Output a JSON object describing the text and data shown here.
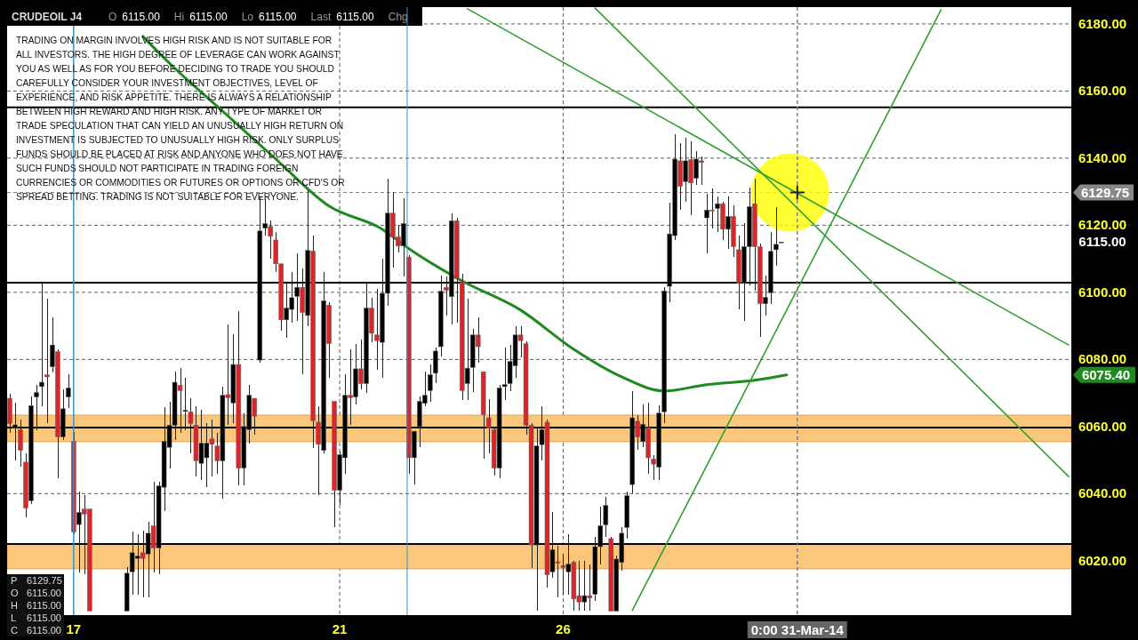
{
  "chart_data": {
    "type": "candlestick",
    "title": "CRUDEOIL J4",
    "subtitle": "O 6115.00 Hi 6115.00 Lo 6115.00 Last 6115.00 Chg",
    "categories": [
      null,
      null,
      null,
      null,
      null,
      null,
      null,
      null,
      null,
      null,
      null,
      null,
      "17",
      null,
      null,
      null,
      null,
      null,
      null,
      null,
      null,
      null,
      null,
      null,
      null,
      null,
      null,
      null,
      null,
      null,
      null,
      null,
      null,
      null,
      null,
      null,
      null,
      null,
      null,
      null,
      null,
      null,
      null,
      null,
      null,
      null,
      null,
      null,
      null,
      null,
      null,
      null,
      null,
      null,
      null,
      null,
      null,
      null,
      null,
      null,
      null,
      null,
      "21",
      null,
      null,
      null,
      null,
      null,
      null,
      null,
      null,
      null,
      null,
      null,
      null,
      null,
      null,
      null,
      null,
      null,
      null,
      null,
      null,
      null,
      null,
      null,
      null,
      null,
      null,
      null,
      null,
      null,
      null,
      null,
      null,
      null,
      null,
      null,
      null,
      null,
      null,
      null,
      null,
      null,
      "26",
      null,
      null,
      null,
      null,
      null,
      null,
      null,
      null,
      null,
      null,
      null,
      null,
      null,
      null,
      null,
      null,
      null,
      null,
      null,
      null,
      null,
      null,
      null,
      null,
      null,
      null,
      null,
      null,
      null,
      null,
      null,
      null,
      null,
      null,
      null,
      null,
      null,
      null,
      null,
      null,
      null,
      null,
      null,
      "0:00 31-Mar-14",
      null,
      null,
      null,
      null,
      null,
      null,
      null,
      null,
      null,
      null,
      null,
      null,
      null,
      null,
      null,
      null,
      null,
      null,
      null,
      null,
      null,
      null,
      null,
      null,
      null,
      null,
      null,
      null,
      null,
      null,
      null,
      null,
      null,
      null,
      null,
      null,
      null,
      null,
      null,
      null,
      null,
      null,
      null,
      null,
      null,
      null,
      null,
      null,
      null,
      null,
      null
    ],
    "ohlc": [
      [
        6068.4,
        6069.7,
        6058,
        6060.9
      ],
      [
        6059.5,
        6067,
        6050,
        6060.5
      ],
      [
        6059.1,
        6062,
        6048,
        6052.9
      ],
      [
        6049.4,
        6052,
        6033,
        6035.7
      ],
      [
        6037.9,
        6069,
        6037,
        6066.2
      ],
      [
        6068.8,
        6072.5,
        6059,
        6070.1
      ],
      [
        6071.9,
        6103,
        6066,
        6073.2
      ],
      [
        6075.4,
        6098,
        6061,
        6074.8
      ],
      [
        6077.8,
        6092.6,
        6076,
        6084.3
      ],
      [
        6082.3,
        6083,
        6044.6,
        6056.9
      ],
      [
        6056.9,
        6071,
        6056,
        6065.3
      ],
      [
        6068.8,
        6075.5,
        6065.6,
        6071.5
      ],
      [
        6055.6,
        6058.4,
        6028,
        6028.6
      ],
      [
        6030.8,
        6040.6,
        6016.6,
        6034.4
      ],
      [
        6035.4,
        6039.5,
        6016,
        6033.9
      ],
      [
        6035.4,
        6035.4,
        6005,
        6005
      ],
      null,
      null,
      null,
      null,
      null,
      null,
      [
        6005,
        6018,
        6005,
        6016.3
      ],
      [
        6016.7,
        6028.6,
        6010,
        6022.4
      ],
      [
        6020.7,
        6028,
        6010,
        6021.4
      ],
      [
        6022.4,
        6029,
        6009,
        6020.7
      ],
      [
        6022,
        6031.6,
        6009,
        6028.2
      ],
      [
        6030.4,
        6043.5,
        6016.6,
        6023.8
      ],
      [
        6023.8,
        6043.6,
        6016,
        6042.3
      ],
      [
        6041.9,
        6065.8,
        6034.7,
        6055.6
      ],
      [
        6053.8,
        6067.4,
        6047.6,
        6060.4
      ],
      [
        6060.4,
        6076.4,
        6056,
        6073.2
      ],
      [
        6072.3,
        6077.5,
        6058,
        6070.7
      ],
      [
        6064.5,
        6074.6,
        6059,
        6064.9
      ],
      [
        6064.4,
        6068.5,
        6052,
        6060.9
      ],
      [
        6060.4,
        6066,
        6045,
        6049.8
      ],
      [
        6049,
        6065,
        6044,
        6055.1
      ],
      [
        6050.7,
        6061,
        6042,
        6055.1
      ],
      [
        6056.3,
        6062,
        6045,
        6054.7
      ],
      [
        6054.2,
        6058,
        6046,
        6049.8
      ],
      [
        6049.8,
        6072,
        6038.6,
        6069.3
      ],
      [
        6069.5,
        6090.5,
        6060.6,
        6068.6
      ],
      [
        6067,
        6087.5,
        6061,
        6078.5
      ],
      [
        6078.5,
        6094.4,
        6042.6,
        6047.6
      ],
      [
        6047.6,
        6064,
        6042.6,
        6060
      ],
      [
        6059.1,
        6072.5,
        6055,
        6069.3
      ],
      [
        6068.4,
        6068.4,
        6057.7,
        6063.1
      ],
      [
        6079.8,
        6128.4,
        6079,
        6118.3
      ],
      [
        6119.1,
        6127.8,
        6117,
        6120.5
      ],
      [
        6119.6,
        6121.3,
        6110,
        6116.7
      ],
      [
        6115.6,
        6118,
        6106,
        6108.5
      ],
      [
        6108.5,
        6108.5,
        6088.6,
        6091.8
      ],
      [
        6091.8,
        6103,
        6086.5,
        6095.3
      ],
      [
        6094.9,
        6106,
        6091,
        6098.4
      ],
      [
        6098.8,
        6111.5,
        6091.5,
        6101.5
      ],
      [
        6101.5,
        6107,
        6075.7,
        6094
      ],
      [
        6093.1,
        6130.3,
        6089.9,
        6112.5
      ],
      [
        6112.3,
        6117,
        6053.6,
        6061.7
      ],
      [
        6061.3,
        6066,
        6039.6,
        6054.7
      ],
      [
        6052.9,
        6106,
        6052,
        6097.5
      ],
      [
        6096.2,
        6097,
        6074.6,
        6084.7
      ],
      [
        6067.5,
        6067.5,
        6030,
        6041
      ],
      [
        6041,
        6052.5,
        6036.6,
        6051.6
      ],
      [
        6050.7,
        6075.6,
        6046,
        6069.3
      ],
      [
        6069.3,
        6083,
        6060.6,
        6068.6
      ],
      [
        6068.8,
        6084.7,
        6066.5,
        6077.2
      ],
      [
        6077.2,
        6086,
        6071,
        6072.8
      ],
      [
        6072.8,
        6103,
        6070,
        6095.3
      ],
      [
        6095.3,
        6098.5,
        6085,
        6087.8
      ],
      [
        6087.3,
        6101,
        6077,
        6085.6
      ],
      [
        6085.1,
        6110,
        6074.6,
        6099.7
      ],
      [
        6099.7,
        6134,
        6096,
        6123.6
      ],
      [
        6123.6,
        6130,
        6107.4,
        6116.5
      ],
      [
        6116.5,
        6120,
        6112,
        6113.8
      ],
      [
        6113.8,
        6128,
        6104.7,
        6120.5
      ],
      [
        6110.5,
        6111,
        6045.8,
        6050.7
      ],
      [
        6050.7,
        6058.6,
        6042.7,
        6058.6
      ],
      [
        6060,
        6069,
        6053.8,
        6067.5
      ],
      [
        6066.9,
        6076.4,
        6066,
        6069.3
      ],
      [
        6070.7,
        6078.6,
        6067.5,
        6075.4
      ],
      [
        6075.9,
        6083.6,
        6073,
        6082.5
      ],
      [
        6083.8,
        6105,
        6081,
        6100.3
      ],
      [
        6101.5,
        6104.7,
        6093,
        6100.6
      ],
      [
        6098.7,
        6123.5,
        6090.5,
        6121.3
      ],
      [
        6121.3,
        6122.3,
        6091,
        6104.1
      ],
      [
        6103.2,
        6105.5,
        6067.8,
        6070.7
      ],
      [
        6072.8,
        6098,
        6067.9,
        6077.4
      ],
      [
        6077.6,
        6089,
        6070.3,
        6087.3
      ],
      [
        6087.3,
        6092.5,
        6079,
        6083.8
      ],
      [
        6076.3,
        6076.3,
        6050.5,
        6063.5
      ],
      [
        6062.6,
        6068.3,
        6052,
        6059.5
      ],
      [
        6059.1,
        6060,
        6045.5,
        6047.6
      ],
      [
        6047.6,
        6072.5,
        6044.6,
        6071.5
      ],
      [
        6071.9,
        6083.5,
        6068,
        6072.5
      ],
      [
        6072.8,
        6084.4,
        6070.5,
        6079.4
      ],
      [
        6078.1,
        6090,
        6074.6,
        6087.3
      ],
      [
        6087.3,
        6090,
        6080.6,
        6085.6
      ],
      [
        6084.7,
        6085.5,
        6057.6,
        6060.4
      ],
      [
        6060.4,
        6061,
        6017.8,
        6024.7
      ],
      [
        6024.7,
        6060,
        6005,
        6054.2
      ],
      [
        6054.6,
        6066,
        6050,
        6059.1
      ],
      [
        6061.3,
        6062,
        6012,
        6015.8
      ],
      [
        6016.7,
        6034.5,
        6015,
        6023.3
      ],
      [
        6019.7,
        6024.5,
        6009,
        6019.3
      ],
      [
        6018.6,
        6022,
        6010,
        6018
      ],
      [
        6016.7,
        6028,
        6010,
        6019
      ],
      [
        6019.5,
        6020,
        6005,
        6008.6
      ],
      [
        6009.6,
        6020,
        6005,
        6007.7
      ],
      [
        6007.7,
        6020,
        6005,
        6009.6
      ],
      [
        6009.6,
        6019,
        6005,
        6008.9
      ],
      [
        6010,
        6027,
        6008,
        6024.2
      ],
      [
        6024.2,
        6036,
        6019,
        6030.4
      ],
      [
        6030.7,
        6039,
        6027,
        6036.5
      ],
      [
        6026.6,
        6027,
        6005,
        6005
      ],
      [
        6005,
        6021.5,
        6005,
        6020.5
      ],
      [
        6019.5,
        6030,
        6017,
        6028.2
      ],
      [
        6029.9,
        6040.5,
        6026.5,
        6039.4
      ],
      [
        6042.7,
        6070.6,
        6040,
        6062.6
      ],
      [
        6061.6,
        6063.5,
        6053,
        6056.9
      ],
      [
        6055.5,
        6066.5,
        6054,
        6060.7
      ],
      [
        6059.7,
        6067,
        6046,
        6050.7
      ],
      [
        6050.3,
        6051.5,
        6044,
        6048.8
      ],
      [
        6047.9,
        6066.4,
        6044,
        6064
      ],
      [
        6064.4,
        6101.5,
        6061,
        6100.4
      ],
      [
        6101.8,
        6126.7,
        6097,
        6117.4
      ],
      [
        6116.9,
        6147.2,
        6115.5,
        6139.7
      ],
      [
        6139.2,
        6144.5,
        6124.5,
        6131.6
      ],
      [
        6133,
        6146,
        6127,
        6139.2
      ],
      [
        6139.5,
        6145,
        6123,
        6132.6
      ],
      [
        6134,
        6142,
        6132,
        6139.7
      ],
      [
        6139.2,
        6140.5,
        6132,
        6138.7
      ],
      [
        6122.2,
        6129.5,
        6111.5,
        6124.5
      ],
      [
        6124.5,
        6131,
        6119,
        6124.2
      ],
      [
        6125,
        6128.5,
        6118,
        6126.4
      ],
      [
        6126.4,
        6127,
        6115.5,
        6118.8
      ],
      [
        6118.8,
        6128.5,
        6113,
        6122.6
      ],
      [
        6122.6,
        6126,
        6110.5,
        6113.6
      ],
      [
        6112.7,
        6117,
        6095,
        6102.8
      ],
      [
        6102.8,
        6120.6,
        6091.6,
        6113.6
      ],
      [
        6113.6,
        6131.3,
        6102,
        6125.5
      ],
      [
        6126.4,
        6134,
        6100.6,
        6113.6
      ],
      [
        6113.6,
        6114.5,
        6086.7,
        6096.6
      ],
      [
        6096.6,
        6105,
        6093,
        6098.5
      ],
      [
        6099.9,
        6118,
        6096.6,
        6112.2
      ],
      [
        6112.7,
        6125.5,
        6108,
        6114.3
      ],
      [
        6115,
        6115,
        6115,
        6115
      ],
      null,
      null,
      null,
      null,
      null,
      null,
      null,
      null,
      null,
      null,
      null,
      null,
      null,
      null,
      null,
      null,
      null,
      null,
      null,
      null,
      null,
      null,
      null,
      null,
      null,
      null,
      null,
      null,
      null,
      null,
      null,
      null,
      null,
      null,
      null,
      null,
      null,
      null,
      null,
      null,
      null,
      null,
      null,
      null,
      null,
      null,
      null,
      null,
      null,
      null,
      null,
      null,
      null,
      null
    ],
    "value_labels": [
      null,
      null,
      null,
      null,
      null,
      null,
      null,
      null,
      null,
      null,
      null,
      null,
      null,
      null,
      null,
      null,
      null,
      null,
      null,
      null,
      null,
      null,
      null,
      null,
      null,
      null,
      null,
      null,
      null,
      null,
      null,
      null,
      null,
      null,
      null,
      null,
      null,
      null,
      null,
      null,
      null,
      null,
      null,
      null,
      null,
      null,
      null,
      null,
      null,
      null,
      null,
      null,
      null,
      null,
      null,
      null,
      null,
      null,
      null,
      null,
      null,
      null,
      null,
      null,
      null,
      null,
      null,
      null,
      null,
      null,
      null,
      null,
      null,
      null,
      null,
      null,
      null,
      null,
      null,
      null,
      null,
      null,
      null,
      null,
      null,
      null,
      null,
      null,
      null,
      null,
      null,
      null,
      null,
      null,
      null,
      null,
      null,
      null,
      null,
      null,
      null,
      null,
      null,
      null,
      null,
      null,
      null,
      null,
      null,
      null,
      null,
      null,
      null,
      null,
      null,
      null,
      null,
      null,
      null,
      null,
      null,
      null,
      null,
      null,
      null,
      null,
      null,
      null,
      null,
      null,
      null,
      null,
      null,
      null,
      null,
      null,
      null,
      null,
      null,
      null,
      null,
      null,
      null,
      null,
      null,
      "6115.00",
      null,
      null,
      null,
      null,
      null,
      null,
      null,
      null,
      null,
      null,
      null,
      null,
      null,
      null,
      null,
      null,
      null,
      null,
      null,
      null,
      null,
      null,
      null,
      null,
      null,
      null,
      null,
      null,
      null,
      null,
      null,
      null,
      null,
      null,
      null,
      null,
      null,
      null,
      null,
      null,
      null,
      null,
      null,
      null,
      null,
      null,
      null,
      null,
      null,
      null,
      null,
      null,
      null,
      null
    ],
    "colors": [
      "#d8262b",
      "#000000",
      "#d8262b",
      "#d8262b",
      "#000000",
      "#000000",
      "#000000",
      "#d8262b",
      "#000000",
      "#d8262b",
      "#000000",
      "#000000",
      "#d8262b",
      "#000000",
      "#d8262b",
      "#d8262b",
      null,
      null,
      null,
      null,
      null,
      null,
      "#000000",
      "#000000",
      "#000000",
      "#d8262b",
      "#000000",
      "#d8262b",
      "#000000",
      "#000000",
      "#000000",
      "#000000",
      "#d8262b",
      "#000000",
      "#d8262b",
      "#d8262b",
      "#000000",
      "#000000",
      "#d8262b",
      "#d8262b",
      "#000000",
      "#d8262b",
      "#000000",
      "#d8262b",
      "#000000",
      "#000000",
      "#d8262b",
      "#000000",
      "#000000",
      "#d8262b",
      "#d8262b",
      "#d8262b",
      "#000000",
      "#000000",
      "#000000",
      "#d8262b",
      "#000000",
      "#d8262b",
      "#d8262b",
      "#000000",
      "#d8262b",
      "#d8262b",
      "#000000",
      "#000000",
      "#d8262b",
      "#000000",
      "#d8262b",
      "#000000",
      "#d8262b",
      "#d8262b",
      "#000000",
      "#000000",
      "#d8262b",
      "#d8262b",
      "#000000",
      "#d8262b",
      "#000000",
      "#000000",
      "#000000",
      "#000000",
      "#000000",
      "#000000",
      "#d8262b",
      "#000000",
      "#d8262b",
      "#d8262b",
      "#000000",
      "#000000",
      "#d8262b",
      "#d8262b",
      "#d8262b",
      "#d8262b",
      "#000000",
      "#000000",
      "#000000",
      "#000000",
      "#d8262b",
      "#d8262b",
      "#d8262b",
      "#000000",
      "#000000",
      "#d8262b",
      "#000000",
      "#d8262b",
      "#d8262b",
      "#000000",
      "#d8262b",
      "#d8262b",
      "#000000",
      "#d8262b",
      "#000000",
      "#000000",
      "#000000",
      "#d8262b",
      "#000000",
      "#000000",
      "#000000",
      "#000000",
      "#d8262b",
      "#000000",
      "#d8262b",
      "#d8262b",
      "#000000",
      "#000000",
      "#000000",
      "#000000",
      "#d8262b",
      "#000000",
      "#d8262b",
      "#000000",
      "#d8262b",
      "#000000",
      "#d8262b",
      "#000000",
      "#d8262b",
      "#000000",
      "#d8262b",
      "#d8262b",
      "#000000",
      "#000000",
      "#d8262b",
      "#d8262b",
      "#000000",
      "#000000",
      "#000000",
      "#000000",
      null,
      null,
      null,
      null,
      null,
      null,
      null,
      null,
      null,
      null,
      null,
      null,
      null,
      null,
      null,
      null,
      null,
      null,
      null,
      null,
      null,
      null,
      null,
      null,
      null,
      null,
      null,
      null,
      null,
      null,
      null,
      null,
      null,
      null,
      null,
      null,
      null,
      null,
      null,
      null,
      null,
      null,
      null,
      null,
      null,
      null,
      null,
      null,
      null,
      null,
      null,
      null,
      null,
      null
    ],
    "series": [
      {
        "type": "line",
        "color": "#1f8a1f",
        "values": [
          null,
          null,
          null,
          null,
          null,
          null,
          null,
          null,
          null,
          null,
          null,
          null,
          null,
          null,
          null,
          null,
          null,
          null,
          null,
          null,
          null,
          null,
          null,
          null,
          null,
          6176.3,
          null,
          null,
          null,
          null,
          6168.3,
          null,
          null,
          null,
          null,
          null,
          null,
          null,
          null,
          null,
          6154.0,
          null,
          null,
          null,
          null,
          null,
          null,
          null,
          null,
          null,
          6139.7,
          null,
          null,
          null,
          null,
          null,
          null,
          null,
          null,
          null,
          6125.7,
          null,
          null,
          null,
          null,
          null,
          null,
          null,
          null,
          null,
          6118.8,
          null,
          null,
          null,
          null,
          6113.0,
          null,
          null,
          null,
          null,
          null,
          null,
          null,
          null,
          null,
          6103.4,
          null,
          null,
          null,
          null,
          null,
          null,
          null,
          null,
          null,
          null,
          6094.7,
          null,
          null,
          null,
          null,
          null,
          null,
          null,
          null,
          null,
          6083.0,
          null,
          null,
          null,
          null,
          null,
          null,
          null,
          null,
          6074.8,
          null,
          null,
          null,
          null,
          null,
          null,
          null,
          6070.6,
          null,
          null,
          null,
          null,
          null,
          null,
          null,
          6072.5,
          null,
          null,
          null,
          null,
          null,
          null,
          null,
          null,
          6073.8,
          null,
          null,
          null,
          null,
          null,
          6075.4,
          null,
          null,
          null,
          null,
          null,
          null,
          null,
          null,
          null,
          null,
          null,
          null,
          null,
          null,
          null,
          null,
          null,
          null,
          null,
          null,
          null,
          null,
          null,
          null,
          null,
          null,
          null,
          null,
          null,
          null,
          null,
          null,
          null,
          null,
          null,
          null,
          null,
          null,
          null,
          null,
          null,
          null,
          null,
          null,
          null,
          null,
          null,
          null,
          null,
          null,
          null,
          null,
          null
        ],
        "value_labels": [
          null,
          null,
          null,
          null,
          null,
          null,
          null,
          null,
          null,
          null,
          null,
          null,
          null,
          null,
          null,
          null,
          null,
          null,
          null,
          null,
          null,
          null,
          null,
          null,
          null,
          null,
          null,
          null,
          null,
          null,
          null,
          null,
          null,
          null,
          null,
          null,
          null,
          null,
          null,
          null,
          null,
          null,
          null,
          null,
          null,
          null,
          null,
          null,
          null,
          null,
          null,
          null,
          null,
          null,
          null,
          null,
          null,
          null,
          null,
          null,
          null,
          null,
          null,
          null,
          null,
          null,
          null,
          null,
          null,
          null,
          null,
          null,
          null,
          null,
          null,
          null,
          null,
          null,
          null,
          null,
          null,
          null,
          null,
          null,
          null,
          null,
          null,
          null,
          null,
          null,
          null,
          null,
          null,
          null,
          null,
          null,
          null,
          null,
          null,
          null,
          null,
          null,
          null,
          null,
          null,
          null,
          null,
          null,
          null,
          null,
          null,
          null,
          null,
          null,
          null,
          null,
          null,
          null,
          null,
          null,
          null,
          null,
          null,
          null,
          null,
          null,
          null,
          null,
          null,
          null,
          null,
          null,
          null,
          null,
          null,
          null,
          null,
          null,
          null,
          null,
          null,
          null,
          null,
          null,
          null,
          null,
          null,
          null,
          null,
          null,
          null,
          null,
          null,
          null,
          null,
          null,
          null,
          null,
          null,
          null,
          null,
          null,
          null,
          null,
          null,
          null,
          null,
          null,
          null,
          null,
          null,
          null,
          null,
          null,
          null,
          null,
          null,
          null,
          null,
          null,
          null,
          null,
          null,
          null,
          null,
          null,
          null,
          null,
          null,
          null,
          null,
          null,
          null,
          null,
          null,
          null,
          null,
          null,
          null,
          null
        ]
      },
      {
        "type": "line",
        "color": "#2ea02e",
        "values": [
          null,
          null,
          null,
          null,
          null,
          null,
          null,
          null,
          null,
          null,
          null,
          null,
          null,
          null,
          null,
          null,
          null,
          null,
          null,
          null,
          null,
          null,
          null,
          null,
          null,
          null,
          null,
          null,
          null,
          null,
          null,
          null,
          null,
          null,
          null,
          null,
          null,
          null,
          null,
          null,
          null,
          null,
          null,
          null,
          null,
          null,
          null,
          null,
          null,
          null,
          null,
          null,
          null,
          null,
          null,
          null,
          null,
          null,
          null,
          null,
          null,
          null,
          null,
          null,
          null,
          null,
          null,
          null,
          null,
          null,
          null,
          null,
          null,
          null,
          null,
          null,
          null,
          null,
          null,
          null,
          null,
          null,
          null,
          null,
          null,
          null,
          6184.5,
          null,
          null,
          null,
          null,
          null,
          null,
          null,
          null,
          null,
          null,
          null,
          null,
          null,
          null,
          null,
          null,
          null,
          null,
          null,
          null,
          null,
          null,
          null,
          null,
          null,
          null,
          null,
          null,
          null,
          null,
          null,
          null,
          null,
          null,
          null,
          null,
          null,
          null,
          null,
          null,
          null,
          null,
          null,
          null,
          null,
          null,
          null,
          null,
          null,
          null,
          null,
          null,
          null,
          null,
          null,
          null,
          null,
          null,
          null,
          null,
          null,
          null,
          null,
          null,
          null,
          null,
          null,
          null,
          null,
          null,
          null,
          null,
          null,
          null,
          null,
          null,
          null,
          null,
          null,
          null,
          null,
          null,
          null,
          null,
          null,
          null,
          null,
          null,
          null,
          null,
          null,
          null,
          null,
          null,
          null,
          null,
          null,
          null,
          null,
          null,
          null,
          null,
          null,
          null,
          null,
          null,
          null,
          null,
          null,
          null,
          null,
          null,
          6084.3
        ]
      },
      {
        "type": "line",
        "color": "#2ea02e",
        "values": [
          null,
          null,
          null,
          null,
          null,
          null,
          null,
          null,
          null,
          null,
          null,
          null,
          null,
          null,
          null,
          null,
          null,
          null,
          null,
          null,
          null,
          null,
          null,
          null,
          null,
          null,
          null,
          null,
          null,
          null,
          null,
          null,
          null,
          null,
          null,
          null,
          null,
          null,
          null,
          null,
          null,
          null,
          null,
          null,
          null,
          null,
          null,
          null,
          null,
          null,
          null,
          null,
          null,
          null,
          null,
          null,
          null,
          null,
          null,
          null,
          null,
          null,
          null,
          null,
          null,
          null,
          null,
          null,
          null,
          null,
          null,
          null,
          null,
          null,
          null,
          null,
          null,
          null,
          null,
          null,
          null,
          null,
          null,
          null,
          null,
          null,
          null,
          null,
          null,
          null,
          null,
          null,
          null,
          null,
          null,
          null,
          null,
          null,
          null,
          null,
          null,
          null,
          null,
          null,
          null,
          null,
          null,
          null,
          null,
          null,
          6184.7,
          null,
          null,
          null,
          null,
          null,
          null,
          null,
          null,
          null,
          null,
          null,
          null,
          null,
          null,
          null,
          null,
          null,
          null,
          null,
          null,
          null,
          null,
          null,
          null,
          null,
          null,
          null,
          null,
          null,
          null,
          null,
          null,
          null,
          null,
          null,
          null,
          null,
          null,
          null,
          null,
          null,
          null,
          null,
          null,
          null,
          null,
          null,
          null,
          null,
          null,
          null,
          null,
          null,
          null,
          null,
          null,
          null,
          null,
          null,
          null,
          null,
          null,
          null,
          null,
          null,
          null,
          null,
          null,
          null,
          null,
          null,
          null,
          null,
          null,
          null,
          null,
          null,
          null,
          null,
          null,
          null,
          null,
          null,
          null,
          null,
          null,
          null,
          null,
          6045.1
        ]
      },
      {
        "type": "line",
        "color": "#2ea02e",
        "values": [
          null,
          null,
          null,
          null,
          null,
          null,
          null,
          null,
          null,
          null,
          null,
          null,
          null,
          null,
          null,
          null,
          null,
          null,
          null,
          null,
          null,
          null,
          null,
          null,
          null,
          null,
          null,
          null,
          null,
          null,
          null,
          null,
          null,
          null,
          null,
          null,
          null,
          null,
          null,
          null,
          null,
          null,
          null,
          null,
          null,
          null,
          null,
          null,
          null,
          null,
          null,
          null,
          null,
          null,
          null,
          null,
          null,
          null,
          null,
          null,
          null,
          null,
          null,
          null,
          null,
          null,
          null,
          null,
          null,
          null,
          null,
          null,
          null,
          null,
          null,
          null,
          null,
          null,
          null,
          null,
          null,
          null,
          null,
          null,
          null,
          null,
          null,
          null,
          null,
          null,
          null,
          null,
          null,
          null,
          null,
          null,
          null,
          null,
          null,
          null,
          null,
          null,
          null,
          null,
          null,
          null,
          null,
          null,
          null,
          null,
          null,
          null,
          null,
          null,
          null,
          null,
          null,
          6005.2,
          null,
          null,
          null,
          null,
          null,
          null,
          null,
          null,
          null,
          null,
          null,
          null,
          null,
          null,
          null,
          null,
          null,
          null,
          null,
          null,
          null,
          null,
          null,
          null,
          null,
          null,
          null,
          null,
          null,
          null,
          null,
          null,
          null,
          null,
          null,
          null,
          null,
          null,
          null,
          null,
          null,
          null,
          null,
          null,
          null,
          null,
          null,
          null,
          null,
          null,
          null,
          null,
          null,
          null,
          null,
          null,
          null,
          6184.2,
          null,
          null,
          null,
          null,
          null,
          null,
          null,
          null,
          null,
          null,
          null,
          null,
          null,
          null,
          null,
          null,
          null,
          null,
          null,
          null,
          null,
          null,
          null,
          null
        ]
      }
    ],
    "ylim": [
      6003.8,
      6185
    ],
    "yticks": [
      {
        "value": 6020,
        "label": "6020.00"
      },
      {
        "value": 6040,
        "label": "6040.00"
      },
      {
        "value": 6060,
        "label": "6060.00"
      },
      {
        "value": 6080,
        "label": "6080.00"
      },
      {
        "value": 6100,
        "label": "6100.00"
      },
      {
        "value": 6120,
        "label": "6120.00"
      },
      {
        "value": 6140,
        "label": "6140.00"
      },
      {
        "value": 6160,
        "label": "6160.00"
      },
      {
        "value": 6180,
        "label": "6180.00"
      }
    ],
    "grid": true,
    "bands": [
      {
        "axis": "y",
        "from": 6055.5,
        "to": 6063.4,
        "color": "#fbc77a"
      },
      {
        "axis": "y",
        "from": 6017.6,
        "to": 6025.0,
        "color": "#fbc77a"
      }
    ],
    "ref_lines": [
      {
        "axis": "y",
        "value": 6155.1,
        "color": "#000000",
        "line_style": "solid"
      },
      {
        "axis": "y",
        "value": 6102.9,
        "color": "#000000",
        "line_style": "solid"
      },
      {
        "axis": "y",
        "value": 6059.7,
        "color": "#000000",
        "line_style": "solid"
      },
      {
        "axis": "y",
        "value": 6025.0,
        "color": "#000000",
        "line_style": "solid"
      },
      {
        "axis": "x",
        "value": "17",
        "color": "#3a8fc8",
        "line_style": "solid"
      },
      {
        "axis": "y",
        "value": 6129.75,
        "label": "6129.75",
        "color": "#808080",
        "line_style": "dashed"
      },
      {
        "axis": "x",
        "value": "0:00 31-Mar-14",
        "color": "#808080",
        "line_style": "dashed"
      }
    ],
    "annotations": [
      "TRADING ON MARGIN INVOLVES HIGH RISK AND IS NOT SUITABLE FOR\nALL INVESTORS. THE HIGH DEGREE OF LEVERAGE CAN WORK AGAINST\nYOU AS WELL AS FOR YOU BEFORE DECIDING TO TRADE YOU SHOULD\nCAREFULLY CONSIDER YOUR INVESTMENT OBJECTIVES, LEVEL OF\nEXPERIENCE, AND RISK APPETITE. THERE IS ALWAYS A RELATIONSHIP\nBETWEEN HIGH REWARD AND HIGH RISK. ANY TYPE OF MARKET OR\nTRADE SPECULATION THAT CAN YIELD AN UNUSUALLY HIGH RETURN ON\nINVESTMENT IS SUBJECTED TO UNUSUALLY HIGH RISK. ONLY SURPLUS\nFUNDS SHOULD BE PLACED AT RISK AND ANYONE WHO DOES NOT HAVE\nSUCH FUNDS SHOULD NOT PARTICIPATE IN TRADING FOREIGN\nCURRENCIES OR COMMODITIES OR FUTURES OR OPTIONS OR CFD'S OR\nSPREAD BETTING. TRADING IS NOT SUITABLE FOR EVERYONE.",
      "P 6129.75\nO 6115.00\nH 6115.00\nL 6115.00\nC 6115.00",
      "6075.40"
    ]
  }
}
